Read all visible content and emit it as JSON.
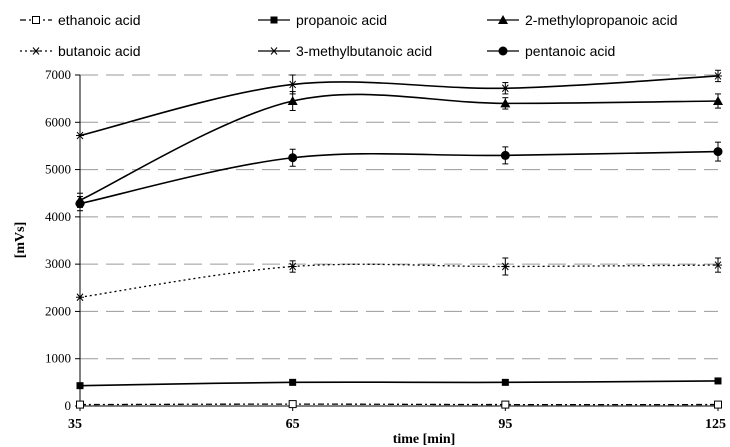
{
  "chart_data": {
    "type": "line",
    "xlabel": "time [min]",
    "ylabel": "[mVs]",
    "x": [
      35,
      65,
      95,
      125
    ],
    "x_ticks": [
      "35",
      "65",
      "95",
      "125"
    ],
    "ylim": [
      0,
      7000
    ],
    "y_ticks": [
      "0",
      "1000",
      "2000",
      "3000",
      "4000",
      "5000",
      "6000",
      "7000"
    ],
    "grid": "horizontal dashed",
    "legend_position": "top",
    "series": [
      {
        "name": "ethanoic acid",
        "marker": "open-square",
        "line": "dash-dot",
        "values": [
          30,
          40,
          30,
          30
        ],
        "errors": [
          0,
          0,
          0,
          0
        ]
      },
      {
        "name": "propanoic acid",
        "marker": "filled-square",
        "line": "solid",
        "values": [
          430,
          500,
          500,
          530
        ],
        "errors": [
          0,
          0,
          0,
          0
        ]
      },
      {
        "name": "2-methylopropanoic acid",
        "marker": "filled-triangle",
        "line": "solid",
        "values": [
          4350,
          6450,
          6400,
          6450
        ],
        "errors": [
          150,
          200,
          120,
          150
        ]
      },
      {
        "name": "butanoic acid",
        "marker": "star",
        "line": "dotted",
        "values": [
          2300,
          2950,
          2950,
          2980
        ],
        "errors": [
          0,
          120,
          180,
          150
        ]
      },
      {
        "name": "3-methylbutanoic acid",
        "marker": "star",
        "line": "solid",
        "values": [
          5720,
          6800,
          6720,
          6980
        ],
        "errors": [
          0,
          200,
          120,
          120
        ]
      },
      {
        "name": "pentanoic acid",
        "marker": "filled-circle",
        "line": "solid",
        "values": [
          4280,
          5250,
          5300,
          5380
        ],
        "errors": [
          150,
          180,
          180,
          200
        ]
      }
    ]
  }
}
